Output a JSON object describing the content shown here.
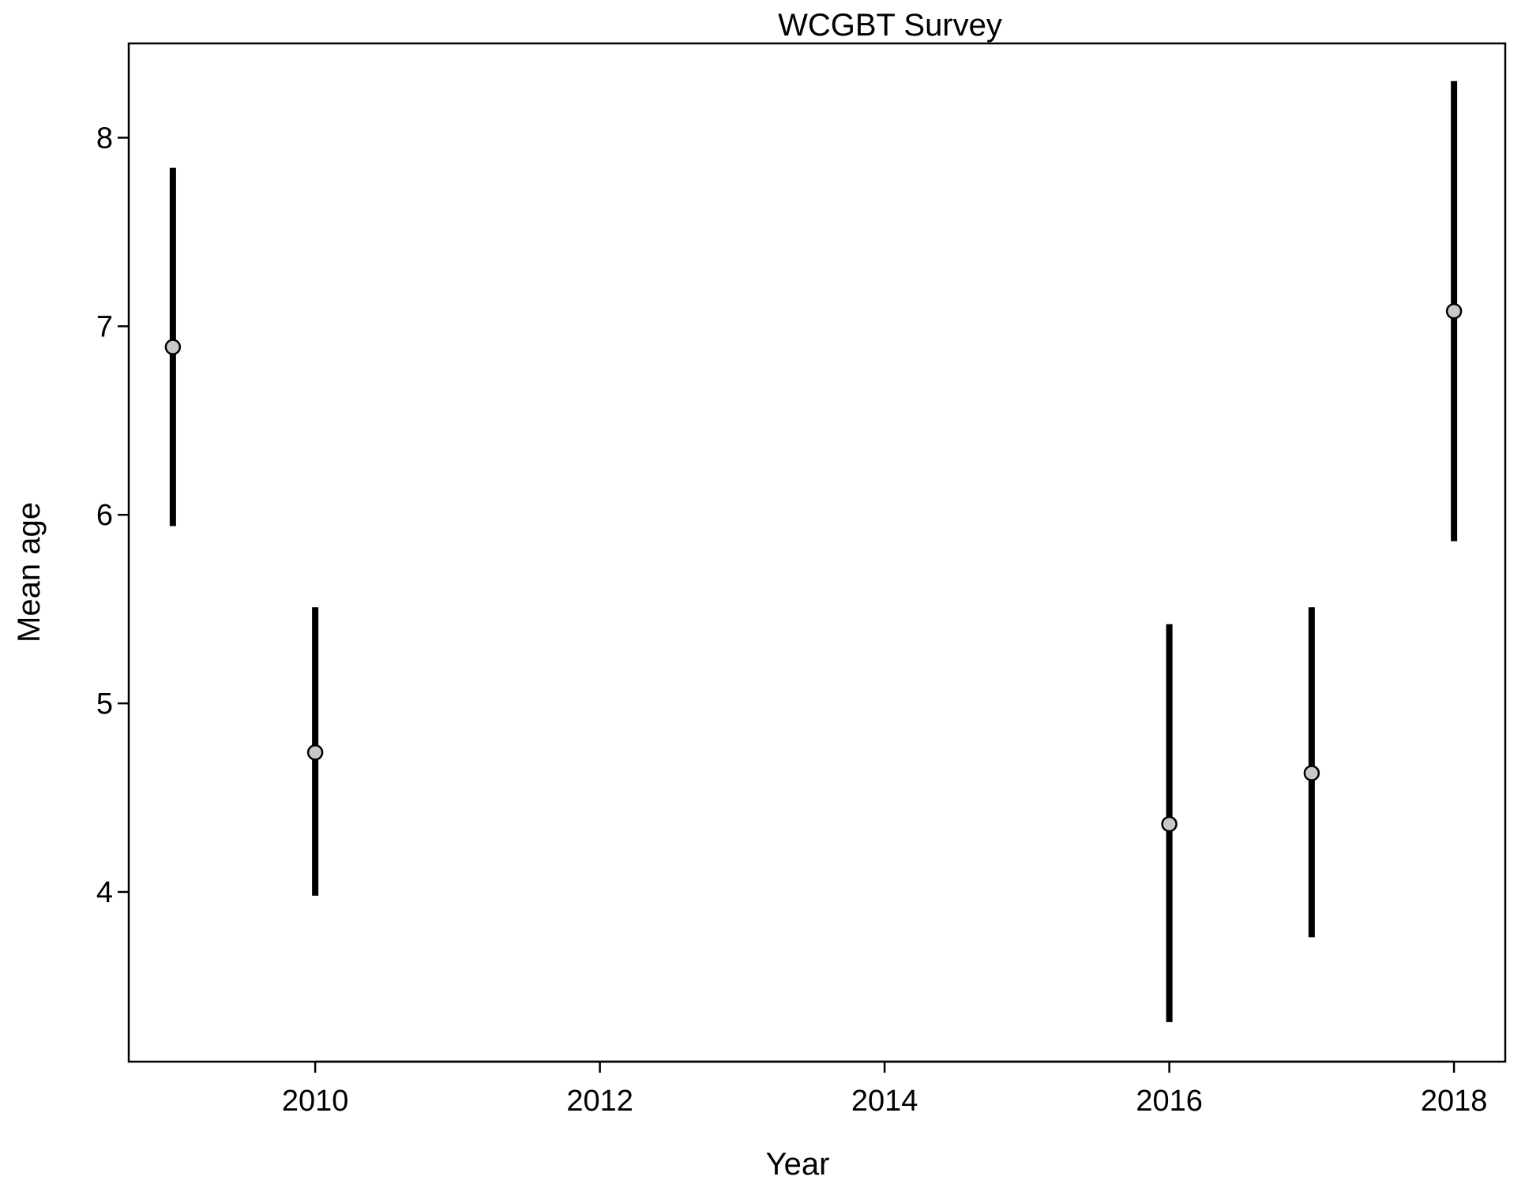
{
  "chart_data": {
    "type": "scatter",
    "title": "WCGBT Survey",
    "xlabel": "Year",
    "ylabel": "Mean age",
    "x_ticks": [
      2010,
      2012,
      2014,
      2016,
      2018
    ],
    "y_ticks": [
      4,
      5,
      6,
      7,
      8
    ],
    "xlim": [
      2008.69,
      2018.36
    ],
    "ylim": [
      3.1,
      8.5
    ],
    "grid": false,
    "legend": "none",
    "colors": {
      "point_fill": "#c8c8c8",
      "bar": "#000000",
      "axis": "#000000"
    },
    "series": [
      {
        "x": [
          2009,
          2010,
          2016,
          2017,
          2018
        ],
        "y": [
          6.89,
          4.74,
          4.36,
          4.63,
          7.08
        ],
        "lower": [
          5.94,
          3.98,
          3.31,
          3.76,
          5.86
        ],
        "upper": [
          7.84,
          5.51,
          5.42,
          5.51,
          8.3
        ]
      }
    ]
  }
}
